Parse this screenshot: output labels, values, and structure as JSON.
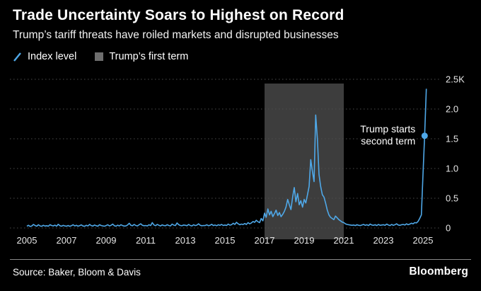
{
  "header": {
    "title": "Trade Uncertainty Soars to Highest on Record",
    "subtitle": "Trump’s tariff threats have roiled markets and disrupted businesses"
  },
  "legend": {
    "items": [
      {
        "label": "Index level",
        "type": "line",
        "color": "#4FA8E8"
      },
      {
        "label": "Trump’s first term",
        "type": "square",
        "color": "#6e6e6e"
      }
    ]
  },
  "footer": {
    "source": "Source: Baker, Bloom & Davis",
    "brand": "Bloomberg"
  },
  "chart_data": {
    "type": "line",
    "title": "Trade Uncertainty Soars to Highest on Record",
    "subtitle": "Trump’s tariff threats have roiled markets and disrupted businesses",
    "xlabel": "",
    "ylabel": "Index level",
    "ylim": [
      0,
      2500
    ],
    "xlim": [
      2005,
      2025.4
    ],
    "grid": "dotted-horizontal",
    "legend_position": "top-left",
    "line_color": "#4FA8E8",
    "band_color": "#3d3d3d",
    "grid_color": "#4d4d4d",
    "axis_text_color": "#e6e6e6",
    "yticks": [
      {
        "v": 0,
        "label": "0"
      },
      {
        "v": 500,
        "label": "0.5"
      },
      {
        "v": 1000,
        "label": "1.0"
      },
      {
        "v": 1500,
        "label": "1.5"
      },
      {
        "v": 2000,
        "label": "2.0"
      },
      {
        "v": 2500,
        "label": "2.5K"
      }
    ],
    "xticks": [
      2005,
      2007,
      2009,
      2011,
      2013,
      2015,
      2017,
      2019,
      2021,
      2023,
      2025
    ],
    "band": {
      "x0": 2017,
      "x1": 2021,
      "label": "Trump’s first term"
    },
    "annotation": {
      "lines": [
        "Trump starts",
        "second term"
      ],
      "x": 2025.083,
      "y": 1550
    },
    "series": [
      {
        "name": "Index level",
        "x_start": 2005.0,
        "x_step_years": 0.0833333,
        "values": [
          30,
          45,
          25,
          35,
          60,
          40,
          30,
          55,
          35,
          28,
          45,
          32,
          38,
          30,
          55,
          42,
          35,
          48,
          30,
          62,
          38,
          30,
          44,
          35,
          30,
          42,
          28,
          38,
          55,
          35,
          45,
          30,
          40,
          52,
          33,
          28,
          45,
          35,
          60,
          40,
          32,
          50,
          38,
          30,
          55,
          42,
          35,
          30,
          40,
          55,
          35,
          45,
          65,
          38,
          30,
          48,
          35,
          55,
          40,
          32,
          35,
          50,
          80,
          45,
          38,
          60,
          42,
          35,
          55,
          70,
          45,
          38,
          42,
          35,
          55,
          40,
          90,
          50,
          38,
          60,
          45,
          35,
          52,
          40,
          38,
          55,
          42,
          35,
          65,
          48,
          40,
          85,
          55,
          42,
          38,
          50,
          45,
          38,
          60,
          42,
          35,
          55,
          40,
          48,
          70,
          45,
          38,
          42,
          40,
          55,
          38,
          45,
          62,
          40,
          50,
          38,
          55,
          45,
          60,
          42,
          50,
          42,
          65,
          48,
          55,
          80,
          60,
          95,
          70,
          55,
          65,
          58,
          75,
          60,
          90,
          70,
          85,
          110,
          95,
          130,
          105,
          90,
          160,
          120,
          250,
          180,
          320,
          220,
          280,
          190,
          240,
          300,
          210,
          260,
          190,
          230,
          280,
          350,
          480,
          390,
          310,
          520,
          680,
          440,
          580,
          390,
          460,
          350,
          480,
          420,
          560,
          700,
          1150,
          950,
          780,
          1900,
          1500,
          900,
          700,
          560,
          520,
          420,
          300,
          220,
          180,
          160,
          140,
          200,
          170,
          140,
          120,
          100,
          90,
          70,
          60,
          55,
          50,
          45,
          50,
          40,
          55,
          45,
          40,
          50,
          60,
          45,
          55,
          40,
          65,
          50,
          45,
          55,
          40,
          60,
          45,
          50,
          55,
          45,
          65,
          50,
          40,
          60,
          45,
          55,
          70,
          50,
          45,
          55,
          60,
          50,
          70,
          55,
          65,
          80,
          70,
          90,
          85,
          110,
          160,
          220,
          900,
          1550,
          2340
        ]
      }
    ]
  }
}
